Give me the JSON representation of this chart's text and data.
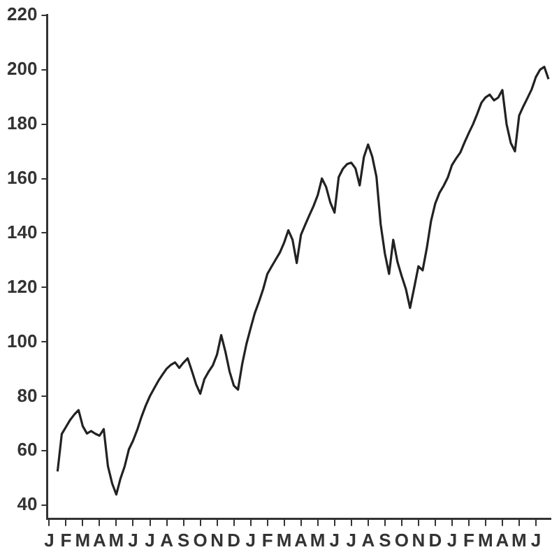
{
  "chart_data": {
    "type": "line",
    "categories": [
      "J",
      null,
      null,
      null,
      "F",
      null,
      null,
      null,
      "M",
      null,
      null,
      null,
      "A",
      null,
      null,
      null,
      "M",
      null,
      null,
      null,
      "J",
      null,
      null,
      null,
      "J",
      null,
      null,
      null,
      "A",
      null,
      null,
      null,
      "S",
      null,
      null,
      null,
      "O",
      null,
      null,
      null,
      "N",
      null,
      null,
      null,
      "D",
      null,
      null,
      null,
      "J",
      null,
      null,
      null,
      "F",
      null,
      null,
      null,
      "M",
      null,
      null,
      null,
      "A",
      null,
      null,
      null,
      "M",
      null,
      null,
      null,
      "J",
      null,
      null,
      null,
      "J",
      null,
      null,
      null,
      "A",
      null,
      null,
      null,
      "S",
      null,
      null,
      null,
      "O",
      null,
      null,
      null,
      "N",
      null,
      null,
      null,
      "D",
      null,
      null,
      null,
      "J",
      null,
      null,
      null,
      "F",
      null,
      null,
      null,
      "M",
      null,
      null,
      null,
      "A",
      null,
      null,
      null,
      "M",
      null,
      null,
      null,
      "J",
      null,
      null,
      null
    ],
    "series": [
      {
        "color": "#222222",
        "values": [
          null,
          null,
          52.5,
          66.2,
          68.8,
          71.4,
          73.4,
          75,
          69.1,
          66.4,
          67.3,
          66.3,
          65.6,
          68,
          54.4,
          48.1,
          44,
          49.9,
          54.4,
          60.6,
          63.8,
          67.8,
          72.5,
          76.6,
          80.1,
          82.9,
          85.7,
          88,
          90.2,
          91.6,
          92.5,
          90.5,
          92.4,
          94,
          89.4,
          84.5,
          81,
          86.4,
          89.1,
          91.4,
          95.4,
          102.5,
          96.4,
          89.1,
          84,
          82.5,
          91.9,
          99.2,
          105,
          110.6,
          114.8,
          119.4,
          125,
          127.7,
          130.3,
          132.9,
          136.5,
          141,
          137.5,
          129,
          139.3,
          143,
          146.5,
          149.9,
          153.9,
          160,
          156.9,
          151.2,
          147.5,
          160.5,
          163.6,
          165.3,
          165.8,
          163.7,
          157.5,
          167.9,
          172.5,
          168,
          160.6,
          143.2,
          132.5,
          125,
          137.5,
          129.4,
          124.2,
          119.5,
          112.5,
          120,
          127.8,
          126.3,
          134.5,
          144.4,
          150.8,
          154.7,
          157.3,
          160.4,
          165,
          167.4,
          169.6,
          173.3,
          176.7,
          179.9,
          183.7,
          187.8,
          189.8,
          190.8,
          188.7,
          189.7,
          192.5,
          180,
          173.1,
          170,
          183.1,
          186.5,
          189.6,
          192.8,
          197.3,
          200,
          201,
          196.5
        ]
      }
    ],
    "ylim": [
      35,
      220
    ],
    "yticks": [
      40,
      60,
      80,
      100,
      120,
      140,
      160,
      180,
      200,
      220
    ],
    "grid": false,
    "legend": false,
    "marker": "none",
    "line_style": "solid"
  }
}
